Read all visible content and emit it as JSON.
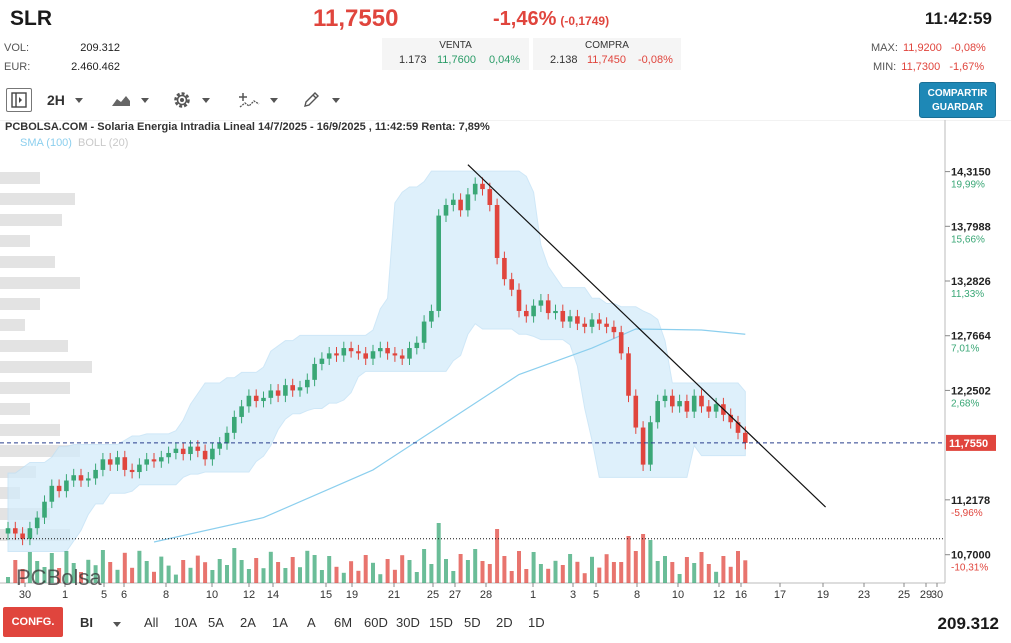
{
  "header": {
    "ticker": "SLR",
    "price": "11,7550",
    "change_pct": "-1,46%",
    "change_abs": "(-0,1749)",
    "time": "11:42:59",
    "vol_label": "VOL:",
    "vol_value": "209.312",
    "eur_label": "EUR:",
    "eur_value": "2.460.462",
    "sell": {
      "label": "VENTA",
      "qty": "1.173",
      "price": "11,7600",
      "pct": "0,04%"
    },
    "buy": {
      "label": "COMPRA",
      "qty": "2.138",
      "price": "11,7450",
      "pct": "-0,08%"
    },
    "max": {
      "label": "MAX:",
      "value": "11,9200",
      "pct": "-0,08%"
    },
    "min": {
      "label": "MIN:",
      "value": "11,7300",
      "pct": "-1,67%"
    }
  },
  "toolbar": {
    "interval": "2H",
    "share_label_1": "COMPARTIR",
    "share_label_2": "GUARDAR"
  },
  "bottom": {
    "config_label": "CONFG.",
    "mode_label": "BI",
    "ranges": [
      "All",
      "10A",
      "5A",
      "2A",
      "1A",
      "A",
      "6M",
      "60D",
      "30D",
      "15D",
      "5D",
      "2D",
      "1D"
    ],
    "volume_total": "209.312"
  },
  "colors": {
    "up": "#3aa776",
    "down": "#e0453d",
    "band": "#d4ecfa",
    "sma": "#8ccfee",
    "accent": "#1e88b6"
  },
  "chart_data": {
    "type": "candlestick",
    "title": "PCBOLSA.COM - Solaria Energia Intradia Lineal 14/7/2025 - 16/9/2025 , 11:42:59 Renta: 7,89%",
    "watermark": "PCBolsa",
    "legend": [
      {
        "name": "SMA (100)",
        "color": "#8ccfee"
      },
      {
        "name": "BOLL (20)",
        "color": "#c9c9c9"
      }
    ],
    "y_ticks": [
      {
        "value": 14.315,
        "label": "14,3150",
        "pct": "19,99%"
      },
      {
        "value": 13.7988,
        "label": "13,7988",
        "pct": "15,66%"
      },
      {
        "value": 13.2826,
        "label": "13,2826",
        "pct": "11,33%"
      },
      {
        "value": 12.7664,
        "label": "12,7664",
        "pct": "7,01%"
      },
      {
        "value": 12.2502,
        "label": "12,2502",
        "pct": "2,68%"
      },
      {
        "value": 11.2178,
        "label": "11,2178",
        "pct": "-5,96%"
      },
      {
        "value": 10.7,
        "label": "10,7000",
        "pct": "-10,31%"
      }
    ],
    "ylim": [
      10.65,
      14.5
    ],
    "current": {
      "value": 11.755,
      "label": "11,7550"
    },
    "x_ticks": [
      "30",
      "1",
      "5",
      "6",
      "8",
      "10",
      "12",
      "14",
      "15",
      "19",
      "21",
      "25",
      "27",
      "28",
      "1",
      "3",
      "5",
      "8",
      "10",
      "12",
      "16",
      "17",
      "19",
      "23",
      "25",
      "29",
      "30"
    ],
    "closes": [
      10.95,
      10.9,
      10.85,
      10.95,
      11.05,
      11.2,
      11.35,
      11.3,
      11.4,
      11.45,
      11.4,
      11.42,
      11.5,
      11.6,
      11.55,
      11.62,
      11.5,
      11.48,
      11.55,
      11.6,
      11.58,
      11.62,
      11.66,
      11.7,
      11.65,
      11.72,
      11.68,
      11.6,
      11.7,
      11.75,
      11.85,
      12.0,
      12.1,
      12.2,
      12.15,
      12.18,
      12.25,
      12.2,
      12.3,
      12.25,
      12.28,
      12.35,
      12.5,
      12.55,
      12.6,
      12.58,
      12.65,
      12.62,
      12.6,
      12.55,
      12.62,
      12.65,
      12.6,
      12.58,
      12.55,
      12.65,
      12.7,
      12.9,
      13.0,
      13.9,
      14.0,
      14.05,
      13.95,
      14.1,
      14.2,
      14.15,
      14.0,
      13.5,
      13.3,
      13.2,
      13.0,
      12.95,
      13.05,
      13.1,
      12.98,
      13.0,
      12.9,
      12.95,
      12.88,
      12.85,
      12.92,
      12.88,
      12.85,
      12.8,
      12.6,
      12.2,
      11.9,
      11.55,
      11.95,
      12.15,
      12.2,
      12.1,
      12.15,
      12.05,
      12.2,
      12.1,
      12.05,
      12.12,
      12.02,
      11.95,
      11.85,
      11.755
    ],
    "sma": [
      {
        "i": 20,
        "value": 10.82
      },
      {
        "i": 35,
        "value": 11.05
      },
      {
        "i": 50,
        "value": 11.5
      },
      {
        "i": 60,
        "value": 11.95
      },
      {
        "i": 70,
        "value": 12.4
      },
      {
        "i": 80,
        "value": 12.65
      },
      {
        "i": 86,
        "value": 12.83
      },
      {
        "i": 95,
        "value": 12.82
      },
      {
        "i": 101,
        "value": 12.78
      }
    ],
    "trendline": [
      {
        "i": 63,
        "value": 14.38
      },
      {
        "i": 112,
        "value": 11.15
      }
    ],
    "support_level": {
      "value": 10.85
    }
  }
}
